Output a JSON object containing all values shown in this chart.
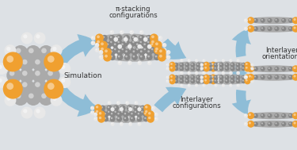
{
  "bg_color": "#dde1e5",
  "arrow_color": "#7ab4d4",
  "orange": "#f0a030",
  "gray_dark": "#888888",
  "gray_med": "#aaaaaa",
  "gray_light": "#cccccc",
  "white_atom": "#e8e8e8",
  "labels": {
    "simulation": "Simulation",
    "pi1": "π-stacking",
    "pi2": "configurations",
    "ic1": "Interlayer",
    "ic2": "configurations",
    "io1": "Interlayer",
    "io2": "orientations"
  },
  "figsize": [
    3.75,
    1.89
  ],
  "dpi": 100
}
